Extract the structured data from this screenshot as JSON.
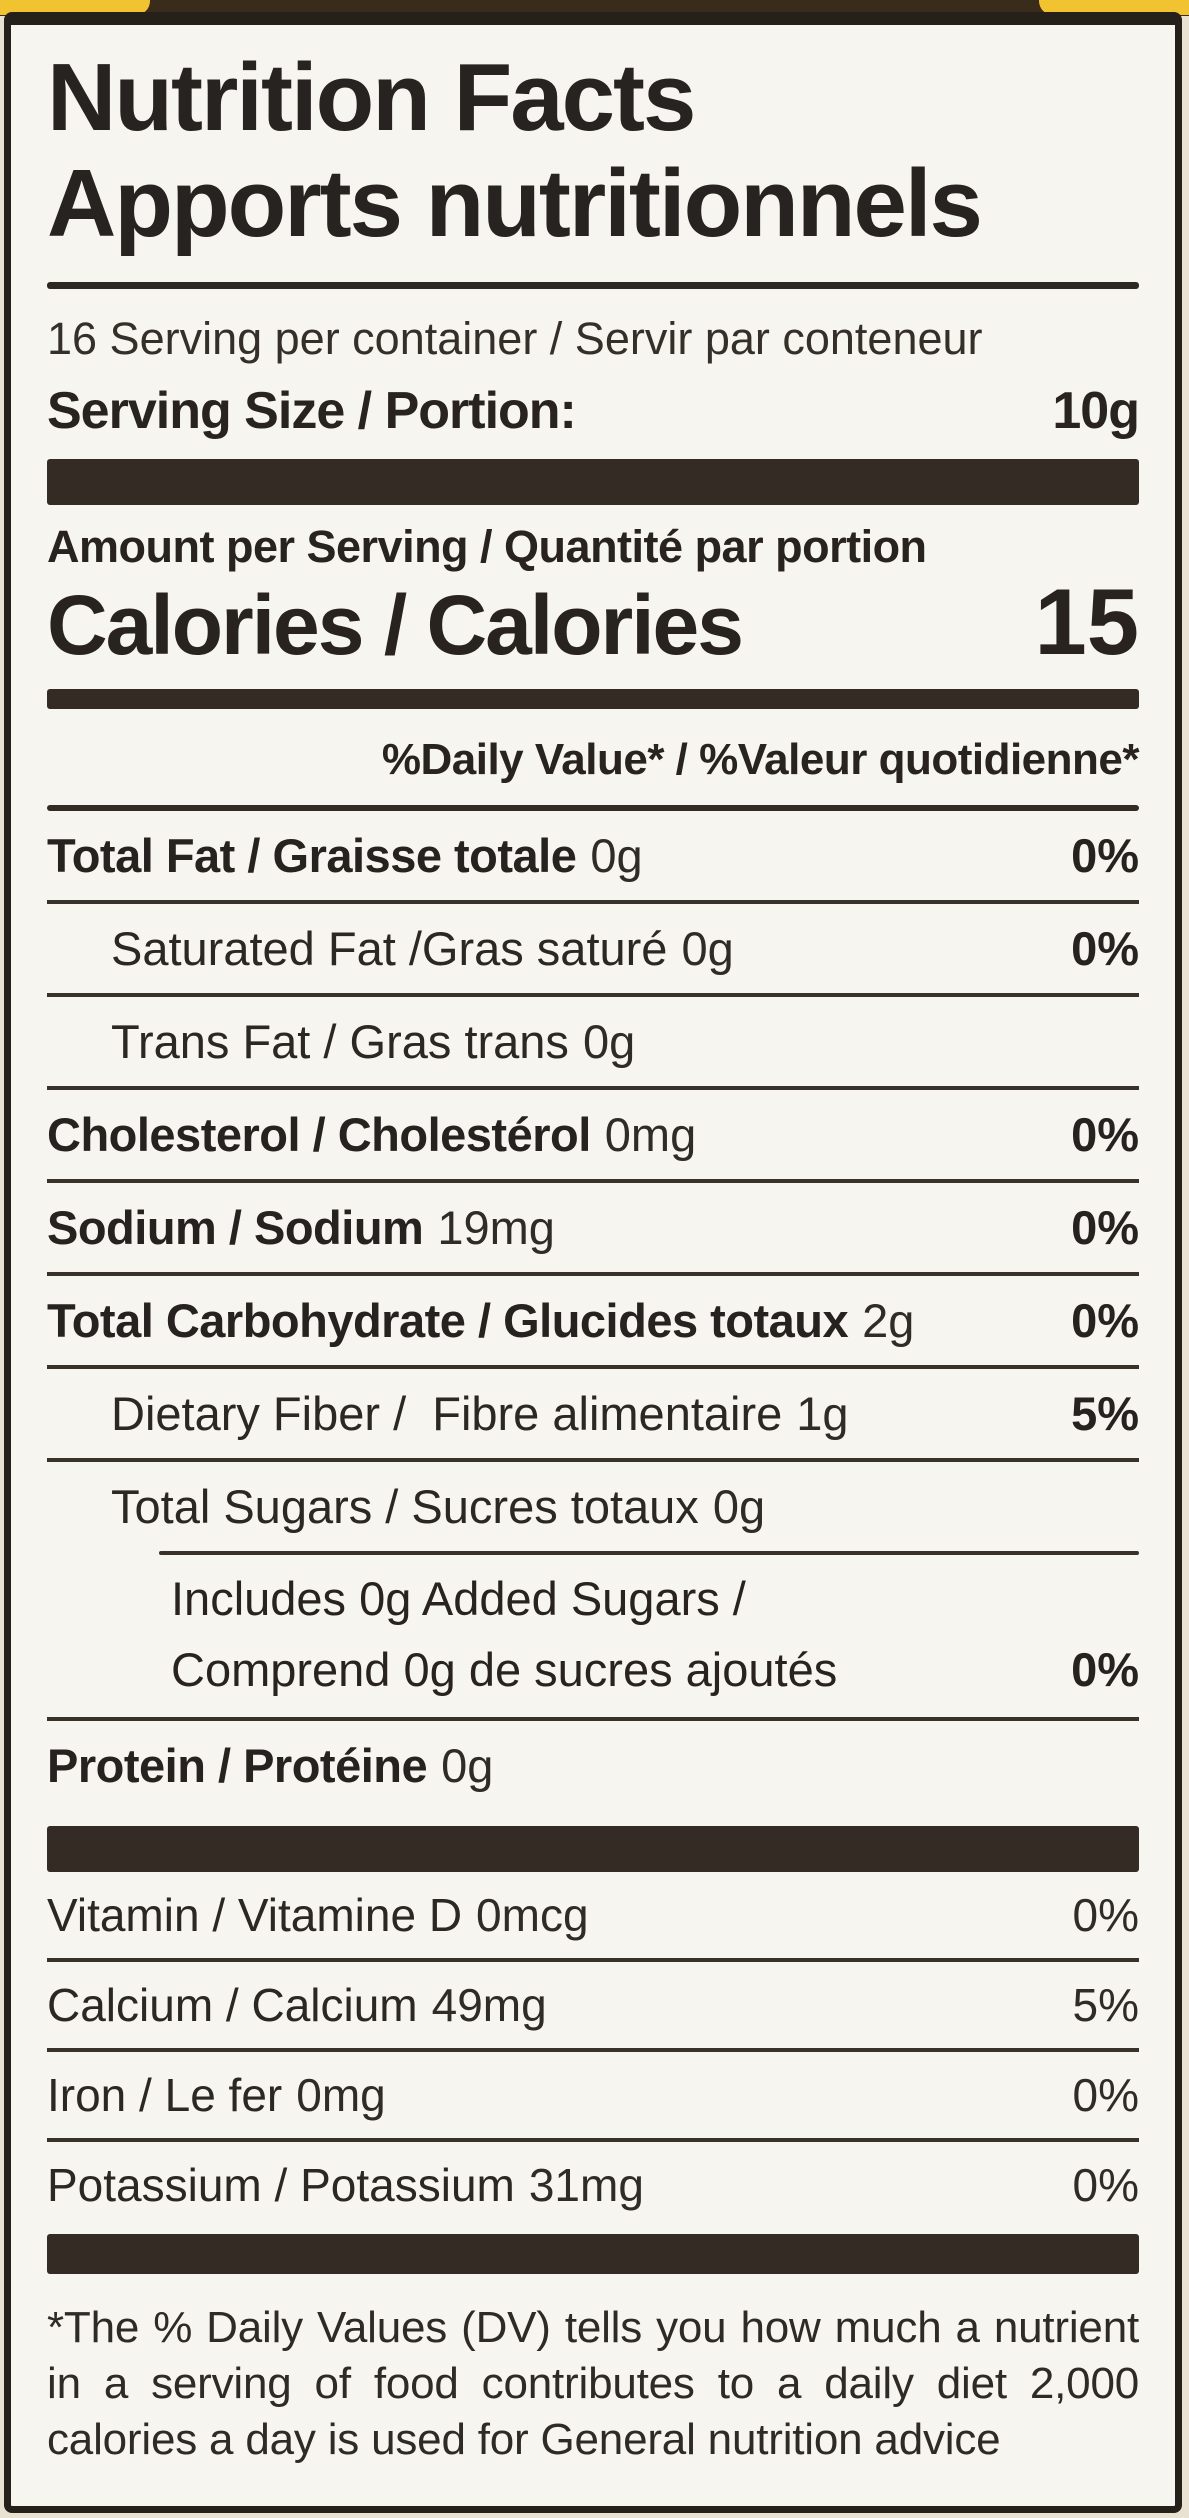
{
  "colors": {
    "package_yellow": "#f2c331",
    "border_dark": "#26201a",
    "bar_dark": "#332b24",
    "label_background": "#f7f5f0",
    "text_dark": "#28231f"
  },
  "label": {
    "title_en": "Nutrition Facts",
    "title_fr": "Apports nutritionnels",
    "servings_line": "16 Serving per container / Servir par conteneur",
    "serving_size": {
      "label": "Serving Size / Portion:",
      "value": "10g"
    },
    "amount_line": "Amount per Serving / Quantité par portion",
    "calories": {
      "label": "Calories / Calories",
      "value": "15"
    },
    "dv_header": "%Daily Value* / %Valeur quotidienne*",
    "rows": [
      {
        "name": "Total Fat / Graisse totale",
        "value": "0g",
        "pct": "0%"
      },
      {
        "name": "Saturated Fat /Gras saturé",
        "value": "0g",
        "pct": "0%"
      },
      {
        "name": "Trans Fat / Gras trans",
        "value": "0g",
        "pct": ""
      },
      {
        "name": "Cholesterol / Cholestérol",
        "value": "0mg",
        "pct": "0%"
      },
      {
        "name": "Sodium / Sodium",
        "value": "19mg",
        "pct": "0%"
      },
      {
        "name": "Total Carbohydrate / Glucides totaux",
        "value": "2g",
        "pct": "0%"
      },
      {
        "name": "Dietary Fiber /  Fibre alimentaire",
        "value": "1g",
        "pct": "5%"
      },
      {
        "name": "Total Sugars / Sucres totaux",
        "value": "0g",
        "pct": ""
      }
    ],
    "added_sugars": {
      "line1": "Includes 0g Added Sugars /",
      "line2": "Comprend 0g de sucres ajoutés",
      "pct": "0%"
    },
    "protein": {
      "name": "Protein / Protéine",
      "value": "0g",
      "pct": ""
    },
    "micronutrients": [
      {
        "name": "Vitamin / Vitamine D",
        "value": "0mcg",
        "pct": "0%"
      },
      {
        "name": "Calcium / Calcium",
        "value": "49mg",
        "pct": "5%"
      },
      {
        "name": "Iron / Le fer",
        "value": "0mg",
        "pct": "0%"
      },
      {
        "name": "Potassium / Potassium",
        "value": "31mg",
        "pct": "0%"
      }
    ],
    "footnote": "*The % Daily Values (DV) tells you how much a nutrient in a serving of food contributes to a daily diet 2,000 calories a day is used for General nutrition advice"
  }
}
